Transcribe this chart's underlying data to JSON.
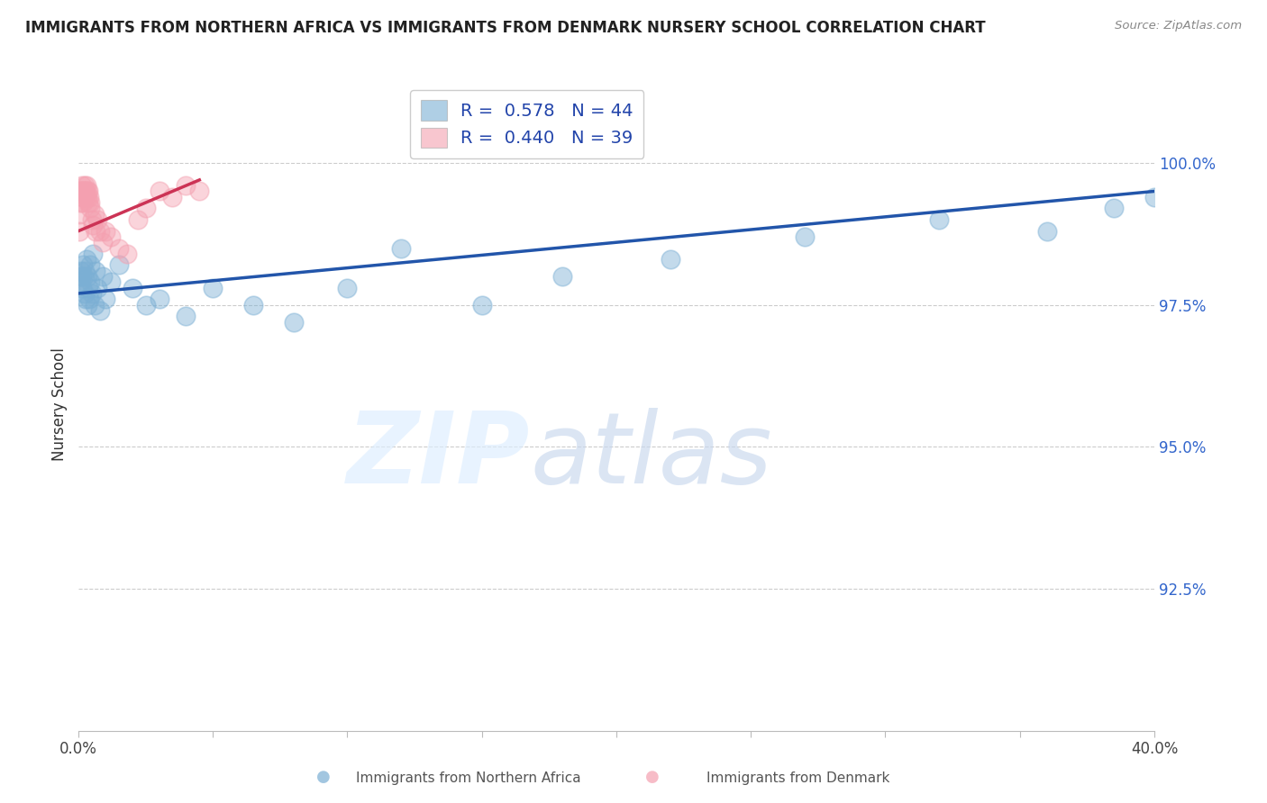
{
  "title": "IMMIGRANTS FROM NORTHERN AFRICA VS IMMIGRANTS FROM DENMARK NURSERY SCHOOL CORRELATION CHART",
  "source": "Source: ZipAtlas.com",
  "ylabel": "Nursery School",
  "y_ticks": [
    92.5,
    95.0,
    97.5,
    100.0
  ],
  "y_tick_labels": [
    "92.5%",
    "95.0%",
    "97.5%",
    "100.0%"
  ],
  "xlim": [
    0.0,
    40.0
  ],
  "ylim": [
    90.0,
    101.5
  ],
  "legend_r1": "R =  0.578",
  "legend_n1": "N = 44",
  "legend_r2": "R =  0.440",
  "legend_n2": "N = 39",
  "blue_color": "#7BAFD4",
  "pink_color": "#F4A0B0",
  "line_blue": "#2255AA",
  "line_pink": "#CC3355",
  "blue_x": [
    0.05,
    0.08,
    0.1,
    0.12,
    0.15,
    0.18,
    0.2,
    0.22,
    0.25,
    0.28,
    0.3,
    0.32,
    0.35,
    0.38,
    0.4,
    0.42,
    0.45,
    0.5,
    0.55,
    0.6,
    0.65,
    0.7,
    0.8,
    0.9,
    1.0,
    1.2,
    1.5,
    2.0,
    2.5,
    3.0,
    4.0,
    5.0,
    6.5,
    8.0,
    10.0,
    12.0,
    15.0,
    18.0,
    22.0,
    27.0,
    32.0,
    36.0,
    38.5,
    40.0
  ],
  "blue_y": [
    98.0,
    97.9,
    98.1,
    98.0,
    97.8,
    98.2,
    98.0,
    97.7,
    98.1,
    97.6,
    98.3,
    97.5,
    98.0,
    97.8,
    97.6,
    98.2,
    97.9,
    97.7,
    98.4,
    97.5,
    98.1,
    97.8,
    97.4,
    98.0,
    97.6,
    97.9,
    98.2,
    97.8,
    97.5,
    97.6,
    97.3,
    97.8,
    97.5,
    97.2,
    97.8,
    98.5,
    97.5,
    98.0,
    98.3,
    98.7,
    99.0,
    98.8,
    99.2,
    99.4
  ],
  "pink_x": [
    0.02,
    0.04,
    0.06,
    0.08,
    0.1,
    0.12,
    0.14,
    0.16,
    0.18,
    0.2,
    0.22,
    0.24,
    0.26,
    0.28,
    0.3,
    0.32,
    0.34,
    0.36,
    0.38,
    0.4,
    0.42,
    0.45,
    0.5,
    0.55,
    0.6,
    0.65,
    0.7,
    0.8,
    0.9,
    1.0,
    1.2,
    1.5,
    1.8,
    2.2,
    2.5,
    3.0,
    3.5,
    4.0,
    4.5
  ],
  "pink_y": [
    98.8,
    99.1,
    99.3,
    99.5,
    99.5,
    99.6,
    99.5,
    99.4,
    99.3,
    99.5,
    99.6,
    99.5,
    99.4,
    99.5,
    99.6,
    99.5,
    99.4,
    99.3,
    99.5,
    99.4,
    99.3,
    99.2,
    99.0,
    98.9,
    99.1,
    98.8,
    99.0,
    98.8,
    98.6,
    98.8,
    98.7,
    98.5,
    98.4,
    99.0,
    99.2,
    99.5,
    99.4,
    99.6,
    99.5
  ],
  "blue_line_x0": 0.0,
  "blue_line_y0": 97.7,
  "blue_line_x1": 40.0,
  "blue_line_y1": 99.5,
  "pink_line_x0": 0.0,
  "pink_line_y0": 98.8,
  "pink_line_x1": 4.5,
  "pink_line_y1": 99.7
}
